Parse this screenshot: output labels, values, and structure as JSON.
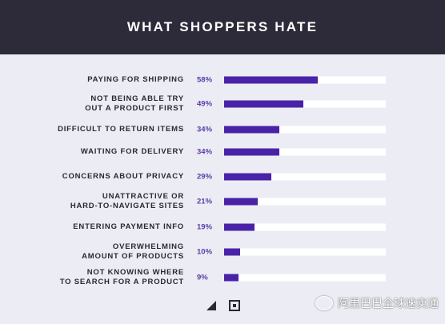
{
  "chart_data": {
    "type": "bar",
    "orientation": "horizontal",
    "title": "WHAT SHOPPERS HATE",
    "categories": [
      [
        "PAYING FOR SHIPPING"
      ],
      [
        "NOT BEING ABLE TRY",
        "OUT A PRODUCT FIRST"
      ],
      [
        "DIFFICULT TO RETURN ITEMS"
      ],
      [
        "WAITING FOR DELIVERY"
      ],
      [
        "CONCERNS ABOUT PRIVACY"
      ],
      [
        "UNATTRACTIVE OR",
        "HARD-TO-NAVIGATE SITES"
      ],
      [
        "ENTERING PAYMENT INFO"
      ],
      [
        "OVERWHELMING",
        "AMOUNT OF PRODUCTS"
      ],
      [
        "NOT KNOWING WHERE",
        "TO SEARCH FOR A PRODUCT"
      ]
    ],
    "value_labels": [
      "58%",
      "49%",
      "34%",
      "34%",
      "29%",
      "21%",
      "19%",
      "10%",
      "9%"
    ],
    "values": [
      58,
      49,
      34,
      34,
      29,
      21,
      19,
      10,
      9
    ],
    "xlim": [
      0,
      100
    ],
    "grid": false,
    "colors": {
      "bar": "#4a22a8",
      "track": "#ffffff",
      "value_text": "#5a3ea8",
      "header_bg": "#2d2a3a"
    }
  },
  "footer": {
    "logos": [
      "bigcommerce-logo-icon",
      "square-logo-icon"
    ]
  },
  "watermark": {
    "text": "阿里巴巴全球速卖通",
    "icon": "wechat-icon"
  }
}
